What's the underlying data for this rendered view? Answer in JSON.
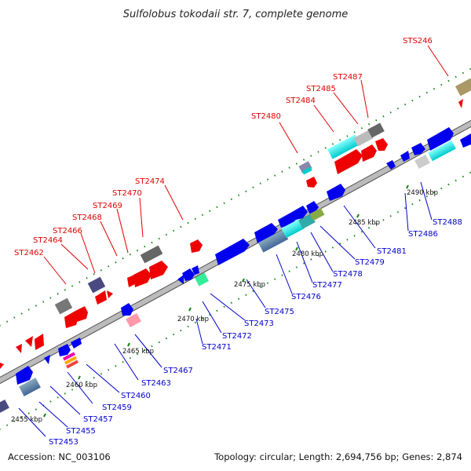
{
  "title": "Sulfolobus tokodaii str. 7, complete genome",
  "accession": "Accession: NC_003106",
  "summary": "Topology: circular; Length: 2,694,756 bp; Genes: 2,874",
  "kbp_labels": [
    "2455 kbp",
    "2460 kbp",
    "2465 kbp",
    "2470 kbp",
    "2475 kbp",
    "2480 kbp",
    "2485 kbp",
    "2490 kbp"
  ],
  "labels_top": [
    "ST2462",
    "ST2464",
    "ST2466",
    "ST2468",
    "ST2469",
    "ST2470",
    "ST2474",
    "ST2480",
    "ST2484",
    "ST2485",
    "ST2487",
    "STS246"
  ],
  "labels_bottom": [
    "ST2453",
    "ST2455",
    "ST2457",
    "ST2459",
    "ST2460",
    "ST2463",
    "ST2467",
    "ST2471",
    "ST2472",
    "ST2473",
    "ST2475",
    "ST2476",
    "ST2477",
    "ST2478",
    "ST2479",
    "ST2481",
    "ST2486",
    "ST2488"
  ],
  "colors": {
    "forward": "#ee0000",
    "reverse": "#0000ee",
    "top_label": "#e00000",
    "bottom_label": "#0000cc",
    "backbone": "#999999"
  }
}
